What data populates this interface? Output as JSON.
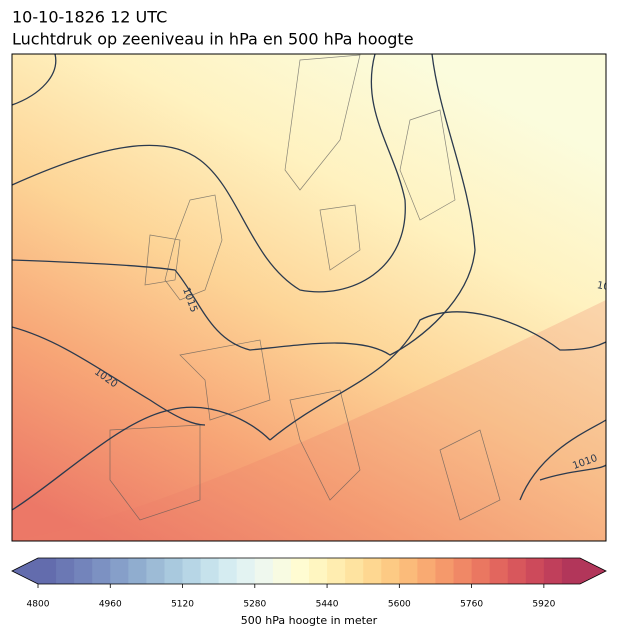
{
  "title": "10-10-1826 12 UTC",
  "subtitle": "Luchtdruk op zeeniveau in hPa en 500 hPa hoogte",
  "contour_labels": [
    "1015",
    "1020",
    "1010",
    "10"
  ],
  "colorbar": {
    "label": "500 hPa hoogte in meter",
    "lim": [
      4800,
      6000
    ],
    "ticks": [
      4800,
      4960,
      5120,
      5280,
      5440,
      5600,
      5760,
      5920
    ],
    "extend": "both",
    "colors": [
      "#636cad",
      "#6b78b4",
      "#7384bb",
      "#7c91c2",
      "#869fc9",
      "#90adcf",
      "#9dbbd6",
      "#a9c9de",
      "#b7d6e6",
      "#c6e2ec",
      "#d5ecf1",
      "#e3f3f2",
      "#eff8ee",
      "#f8fbe2",
      "#fffcd2",
      "#fff6c1",
      "#ffedb0",
      "#fee3a0",
      "#fed791",
      "#fdca84",
      "#fbbb7a",
      "#f9aa72",
      "#f5996b",
      "#f08866",
      "#ea7761",
      "#e2665e",
      "#d8575c",
      "#cd4a5b",
      "#c03f5b",
      "#b2365a"
    ]
  }
}
